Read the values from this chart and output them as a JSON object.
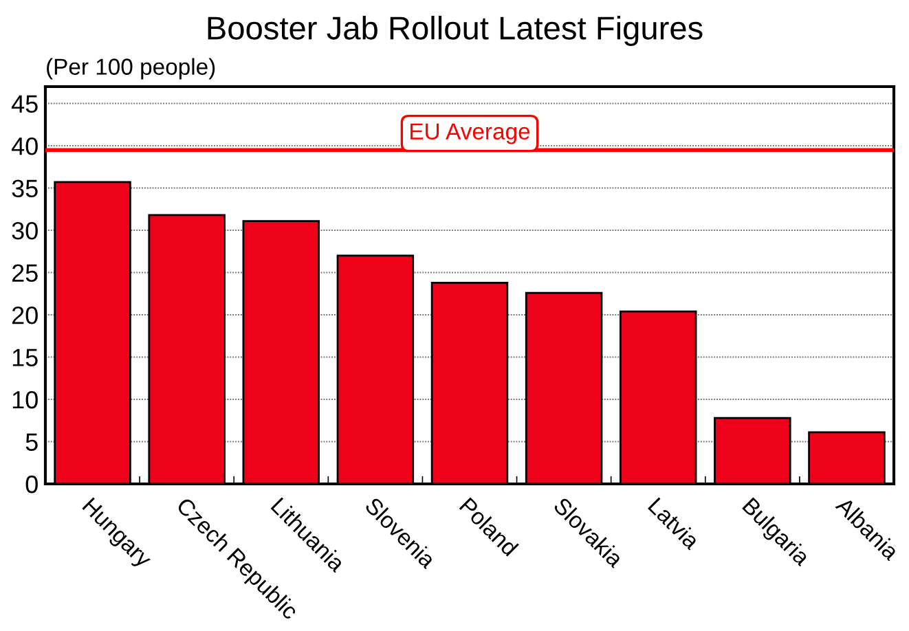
{
  "chart_data": {
    "type": "bar",
    "title": "Booster Jab Rollout Latest Figures",
    "ylabel": "(Per 100 people)",
    "categories": [
      "Hungary",
      "Czech Republic",
      "Lithuania",
      "Slovenia",
      "Poland",
      "Slovakia",
      "Latvia",
      "Bulgaria",
      "Albania"
    ],
    "values": [
      35.7,
      31.8,
      31.1,
      27.0,
      23.8,
      22.6,
      20.4,
      7.8,
      6.1
    ],
    "color": "#ee0219",
    "ylim": [
      0,
      47
    ],
    "yticks": [
      0,
      5,
      10,
      15,
      20,
      25,
      30,
      35,
      40,
      45
    ],
    "grid": "y",
    "ref_lines": [
      {
        "axis": "y",
        "value": 39.5,
        "label": "EU Average",
        "color": "#ff0000"
      }
    ]
  }
}
